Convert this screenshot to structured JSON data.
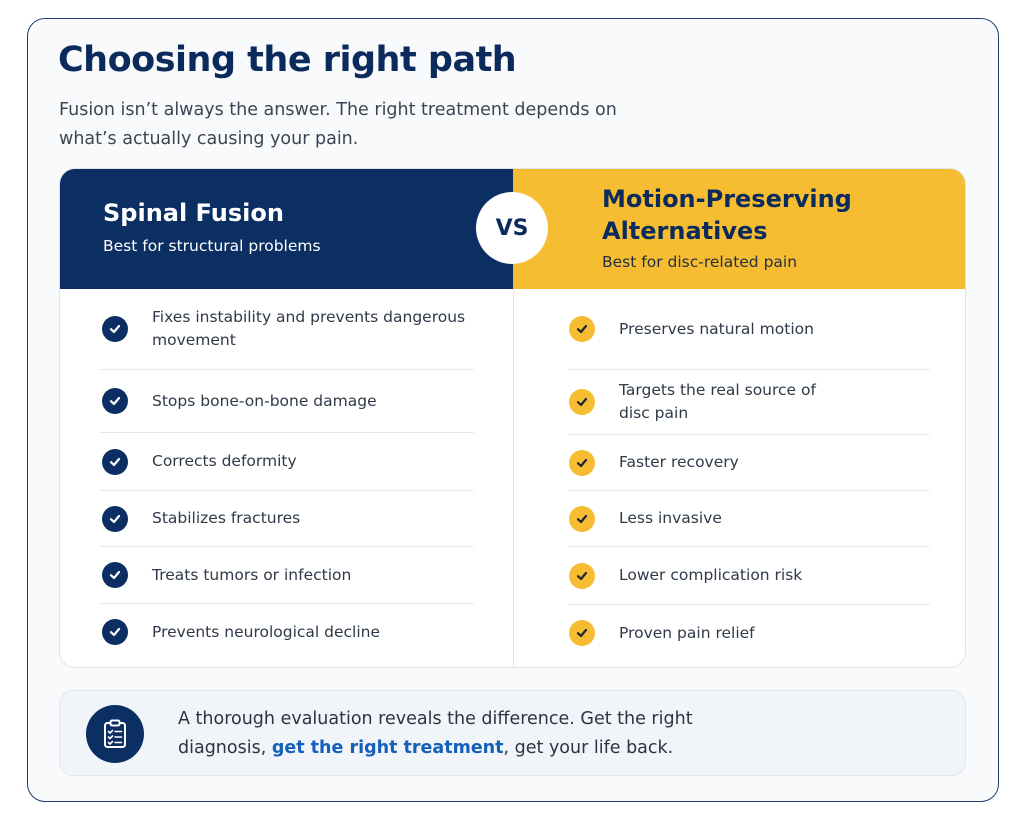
{
  "title": "Choosing the right path",
  "subtitle": "Fusion isn’t always the answer. The right treatment depends on what’s actually causing your pain.",
  "vs_label": "VS",
  "left": {
    "title": "Spinal Fusion",
    "subtitle": "Best for structural problems",
    "items": [
      {
        "text": "Fixes instability and prevents dangerous movement"
      },
      {
        "text": "Stops bone-on-bone damage"
      },
      {
        "text": "Corrects deformity"
      },
      {
        "text": "Stabilizes fractures"
      },
      {
        "text": "Treats tumors or infection"
      },
      {
        "text": "Prevents neurological decline"
      }
    ]
  },
  "right": {
    "title": "Motion-Preserving Alternatives",
    "subtitle": "Best for disc-related pain",
    "items": [
      {
        "text": "Preserves natural motion"
      },
      {
        "text": "Targets the real source of disc pain"
      },
      {
        "text": "Faster recovery"
      },
      {
        "text": "Less invasive"
      },
      {
        "text": "Lower complication risk"
      },
      {
        "text": "Proven pain relief"
      }
    ]
  },
  "note": {
    "text_before": "A thorough evaluation reveals the difference. Get the right diagnosis, ",
    "link_text": "get the right treatment",
    "text_after": ", get your life back.",
    "icon": "clipboard-checklist-icon"
  },
  "colors": {
    "navy": "#0b2f63",
    "gold": "#f6bd32",
    "link": "#1560b8"
  }
}
